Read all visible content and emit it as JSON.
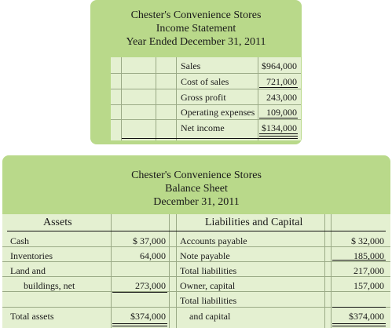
{
  "income_statement": {
    "company": "Chester's Convenience Stores",
    "statement": "Income Statement",
    "period": "Year Ended December 31, 2011",
    "rows": [
      {
        "label": "Sales",
        "value": "$964,000"
      },
      {
        "label": "Cost of sales",
        "value": "721,000"
      },
      {
        "label": "Gross profit",
        "value": "243,000"
      },
      {
        "label": "Operating expenses",
        "value": "109,000"
      },
      {
        "label": "Net income",
        "value": "$134,000"
      }
    ]
  },
  "balance_sheet": {
    "company": "Chester's Convenience Stores",
    "statement": "Balance Sheet",
    "date": "December 31, 2011",
    "assets_header": "Assets",
    "liab_header": "Liabilities and Capital",
    "assets": [
      {
        "label": "Cash",
        "value": "$ 37,000"
      },
      {
        "label": "Inventories",
        "value": "64,000"
      },
      {
        "label": "Land and",
        "value": ""
      },
      {
        "label": "buildings, net",
        "value": "273,000"
      },
      {
        "label": "",
        "value": ""
      },
      {
        "label": "Total assets",
        "value": "$374,000"
      }
    ],
    "liabilities": [
      {
        "label": "Accounts payable",
        "value": "$ 32,000"
      },
      {
        "label": "Note payable",
        "value": "185,000"
      },
      {
        "label": "Total liabilities",
        "value": "217,000"
      },
      {
        "label": "Owner, capital",
        "value": "157,000"
      },
      {
        "label": "Total liabilities",
        "value": ""
      },
      {
        "label": "and capital",
        "value": "$374,000"
      }
    ]
  }
}
